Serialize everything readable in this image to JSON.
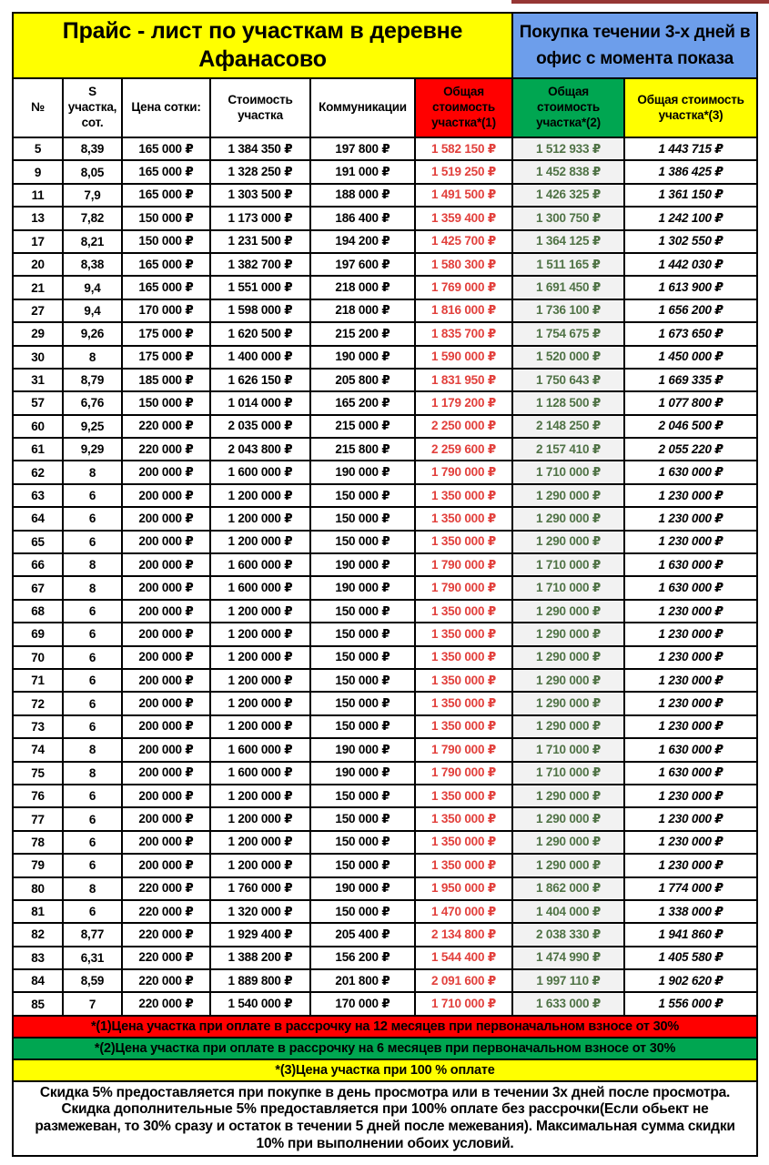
{
  "header": {
    "title": "Прайс - лист по участкам в деревне Афанасово",
    "banner": "Покупка течении 3-х дней в офис с момента показа"
  },
  "table": {
    "columns": [
      "№",
      "S участка, сот.",
      "Цена сотки:",
      "Стоимость участка",
      "Коммуникации",
      "Общая стоимость участка*(1)",
      "Общая стоимость участка*(2)",
      "Общая стоимость участка*(3)"
    ],
    "column_keys": [
      "num",
      "plot-area",
      "price-per-sotka",
      "plot-cost",
      "communications",
      "total-cost-1",
      "total-cost-2",
      "total-cost-3"
    ],
    "rows": [
      [
        "5",
        "8,39",
        "165 000 ₽",
        "1 384 350 ₽",
        "197 800 ₽",
        "1 582 150 ₽",
        "1 512 933 ₽",
        "1 443 715 ₽"
      ],
      [
        "9",
        "8,05",
        "165 000 ₽",
        "1 328 250 ₽",
        "191 000 ₽",
        "1 519 250 ₽",
        "1 452 838 ₽",
        "1 386 425 ₽"
      ],
      [
        "11",
        "7,9",
        "165 000 ₽",
        "1 303 500 ₽",
        "188 000 ₽",
        "1 491 500 ₽",
        "1 426 325 ₽",
        "1 361 150 ₽"
      ],
      [
        "13",
        "7,82",
        "150 000 ₽",
        "1 173 000 ₽",
        "186 400 ₽",
        "1 359 400 ₽",
        "1 300 750 ₽",
        "1 242 100 ₽"
      ],
      [
        "17",
        "8,21",
        "150 000 ₽",
        "1 231 500 ₽",
        "194 200 ₽",
        "1 425 700 ₽",
        "1 364 125 ₽",
        "1 302 550 ₽"
      ],
      [
        "20",
        "8,38",
        "165 000 ₽",
        "1 382 700 ₽",
        "197 600 ₽",
        "1 580 300 ₽",
        "1 511 165 ₽",
        "1 442 030 ₽"
      ],
      [
        "21",
        "9,4",
        "165 000 ₽",
        "1 551 000 ₽",
        "218 000 ₽",
        "1 769 000 ₽",
        "1 691 450 ₽",
        "1 613 900 ₽"
      ],
      [
        "27",
        "9,4",
        "170 000 ₽",
        "1 598 000 ₽",
        "218 000 ₽",
        "1 816 000 ₽",
        "1 736 100 ₽",
        "1 656 200 ₽"
      ],
      [
        "29",
        "9,26",
        "175 000 ₽",
        "1 620 500 ₽",
        "215 200 ₽",
        "1 835 700 ₽",
        "1 754 675 ₽",
        "1 673 650 ₽"
      ],
      [
        "30",
        "8",
        "175 000 ₽",
        "1 400 000 ₽",
        "190 000 ₽",
        "1 590 000 ₽",
        "1 520 000 ₽",
        "1 450 000 ₽"
      ],
      [
        "31",
        "8,79",
        "185 000 ₽",
        "1 626 150 ₽",
        "205 800 ₽",
        "1 831 950 ₽",
        "1 750 643 ₽",
        "1 669 335 ₽"
      ],
      [
        "57",
        "6,76",
        "150 000 ₽",
        "1 014 000 ₽",
        "165 200 ₽",
        "1 179 200 ₽",
        "1 128 500 ₽",
        "1 077 800 ₽"
      ],
      [
        "60",
        "9,25",
        "220 000 ₽",
        "2 035 000 ₽",
        "215 000 ₽",
        "2 250 000 ₽",
        "2 148 250 ₽",
        "2 046 500 ₽"
      ],
      [
        "61",
        "9,29",
        "220 000 ₽",
        "2 043 800 ₽",
        "215 800 ₽",
        "2 259 600 ₽",
        "2 157 410 ₽",
        "2 055 220 ₽"
      ],
      [
        "62",
        "8",
        "200 000 ₽",
        "1 600 000 ₽",
        "190 000 ₽",
        "1 790 000 ₽",
        "1 710 000 ₽",
        "1 630 000 ₽"
      ],
      [
        "63",
        "6",
        "200 000 ₽",
        "1 200 000 ₽",
        "150 000 ₽",
        "1 350 000 ₽",
        "1 290 000 ₽",
        "1 230 000 ₽"
      ],
      [
        "64",
        "6",
        "200 000 ₽",
        "1 200 000 ₽",
        "150 000 ₽",
        "1 350 000 ₽",
        "1 290 000 ₽",
        "1 230 000 ₽"
      ],
      [
        "65",
        "6",
        "200 000 ₽",
        "1 200 000 ₽",
        "150 000 ₽",
        "1 350 000 ₽",
        "1 290 000 ₽",
        "1 230 000 ₽"
      ],
      [
        "66",
        "8",
        "200 000 ₽",
        "1 600 000 ₽",
        "190 000 ₽",
        "1 790 000 ₽",
        "1 710 000 ₽",
        "1 630 000 ₽"
      ],
      [
        "67",
        "8",
        "200 000 ₽",
        "1 600 000 ₽",
        "190 000 ₽",
        "1 790 000 ₽",
        "1 710 000 ₽",
        "1 630 000 ₽"
      ],
      [
        "68",
        "6",
        "200 000 ₽",
        "1 200 000 ₽",
        "150 000 ₽",
        "1 350 000 ₽",
        "1 290 000 ₽",
        "1 230 000 ₽"
      ],
      [
        "69",
        "6",
        "200 000 ₽",
        "1 200 000 ₽",
        "150 000 ₽",
        "1 350 000 ₽",
        "1 290 000 ₽",
        "1 230 000 ₽"
      ],
      [
        "70",
        "6",
        "200 000 ₽",
        "1 200 000 ₽",
        "150 000 ₽",
        "1 350 000 ₽",
        "1 290 000 ₽",
        "1 230 000 ₽"
      ],
      [
        "71",
        "6",
        "200 000 ₽",
        "1 200 000 ₽",
        "150 000 ₽",
        "1 350 000 ₽",
        "1 290 000 ₽",
        "1 230 000 ₽"
      ],
      [
        "72",
        "6",
        "200 000 ₽",
        "1 200 000 ₽",
        "150 000 ₽",
        "1 350 000 ₽",
        "1 290 000 ₽",
        "1 230 000 ₽"
      ],
      [
        "73",
        "6",
        "200 000 ₽",
        "1 200 000 ₽",
        "150 000 ₽",
        "1 350 000 ₽",
        "1 290 000 ₽",
        "1 230 000 ₽"
      ],
      [
        "74",
        "8",
        "200 000 ₽",
        "1 600 000 ₽",
        "190 000 ₽",
        "1 790 000 ₽",
        "1 710 000 ₽",
        "1 630 000 ₽"
      ],
      [
        "75",
        "8",
        "200 000 ₽",
        "1 600 000 ₽",
        "190 000 ₽",
        "1 790 000 ₽",
        "1 710 000 ₽",
        "1 630 000 ₽"
      ],
      [
        "76",
        "6",
        "200 000 ₽",
        "1 200 000 ₽",
        "150 000 ₽",
        "1 350 000 ₽",
        "1 290 000 ₽",
        "1 230 000 ₽"
      ],
      [
        "77",
        "6",
        "200 000 ₽",
        "1 200 000 ₽",
        "150 000 ₽",
        "1 350 000 ₽",
        "1 290 000 ₽",
        "1 230 000 ₽"
      ],
      [
        "78",
        "6",
        "200 000 ₽",
        "1 200 000 ₽",
        "150 000 ₽",
        "1 350 000 ₽",
        "1 290 000 ₽",
        "1 230 000 ₽"
      ],
      [
        "79",
        "6",
        "200 000 ₽",
        "1 200 000 ₽",
        "150 000 ₽",
        "1 350 000 ₽",
        "1 290 000 ₽",
        "1 230 000 ₽"
      ],
      [
        "80",
        "8",
        "220 000 ₽",
        "1 760 000 ₽",
        "190 000 ₽",
        "1 950 000 ₽",
        "1 862 000 ₽",
        "1 774 000 ₽"
      ],
      [
        "81",
        "6",
        "220 000 ₽",
        "1 320 000 ₽",
        "150 000 ₽",
        "1 470 000 ₽",
        "1 404 000 ₽",
        "1 338 000 ₽"
      ],
      [
        "82",
        "8,77",
        "220 000 ₽",
        "1 929 400 ₽",
        "205 400 ₽",
        "2 134 800 ₽",
        "2 038 330 ₽",
        "1 941 860 ₽"
      ],
      [
        "83",
        "6,31",
        "220 000 ₽",
        "1 388 200 ₽",
        "156 200 ₽",
        "1 544 400 ₽",
        "1 474 990 ₽",
        "1 405 580 ₽"
      ],
      [
        "84",
        "8,59",
        "220 000 ₽",
        "1 889 800 ₽",
        "201 800 ₽",
        "2 091 600 ₽",
        "1 997 110 ₽",
        "1 902 620 ₽"
      ],
      [
        "85",
        "7",
        "220 000 ₽",
        "1 540 000 ₽",
        "170 000 ₽",
        "1 710 000 ₽",
        "1 633 000 ₽",
        "1 556 000 ₽"
      ]
    ]
  },
  "footnotes": [
    {
      "key": "red",
      "text": "*(1)Цена участка при оплате в рассрочку на 12 месяцев при первоначальном взносе от 30%"
    },
    {
      "key": "green",
      "text": "*(2)Цена участка при оплате в рассрочку на 6 месяцев при первоначальном взносе от 30%"
    },
    {
      "key": "yellow",
      "text": "*(3)Цена участка при 100 % оплате"
    }
  ],
  "note": "Скидка 5% предоставляется при покупке в день просмотра или в течении 3х дней после просмотра.    Скидка дополнительные 5%  предоставляется при 100% оплате без рассрочки(Если обьект не размежеван, то 30% сразу и остаток в течении 5 дней после межевания).  Максимальная сумма скидки 10% при выполнении обоих условий.",
  "colors": {
    "yellow": "#FFFF00",
    "blue": "#6D9EEB",
    "red": "#FF0000",
    "green": "#00A651",
    "red_value_text": "#E2403C",
    "green_value_text": "#4F7245",
    "total2_cell_bg": "#F2F2F2",
    "top_strip": "#963634"
  }
}
